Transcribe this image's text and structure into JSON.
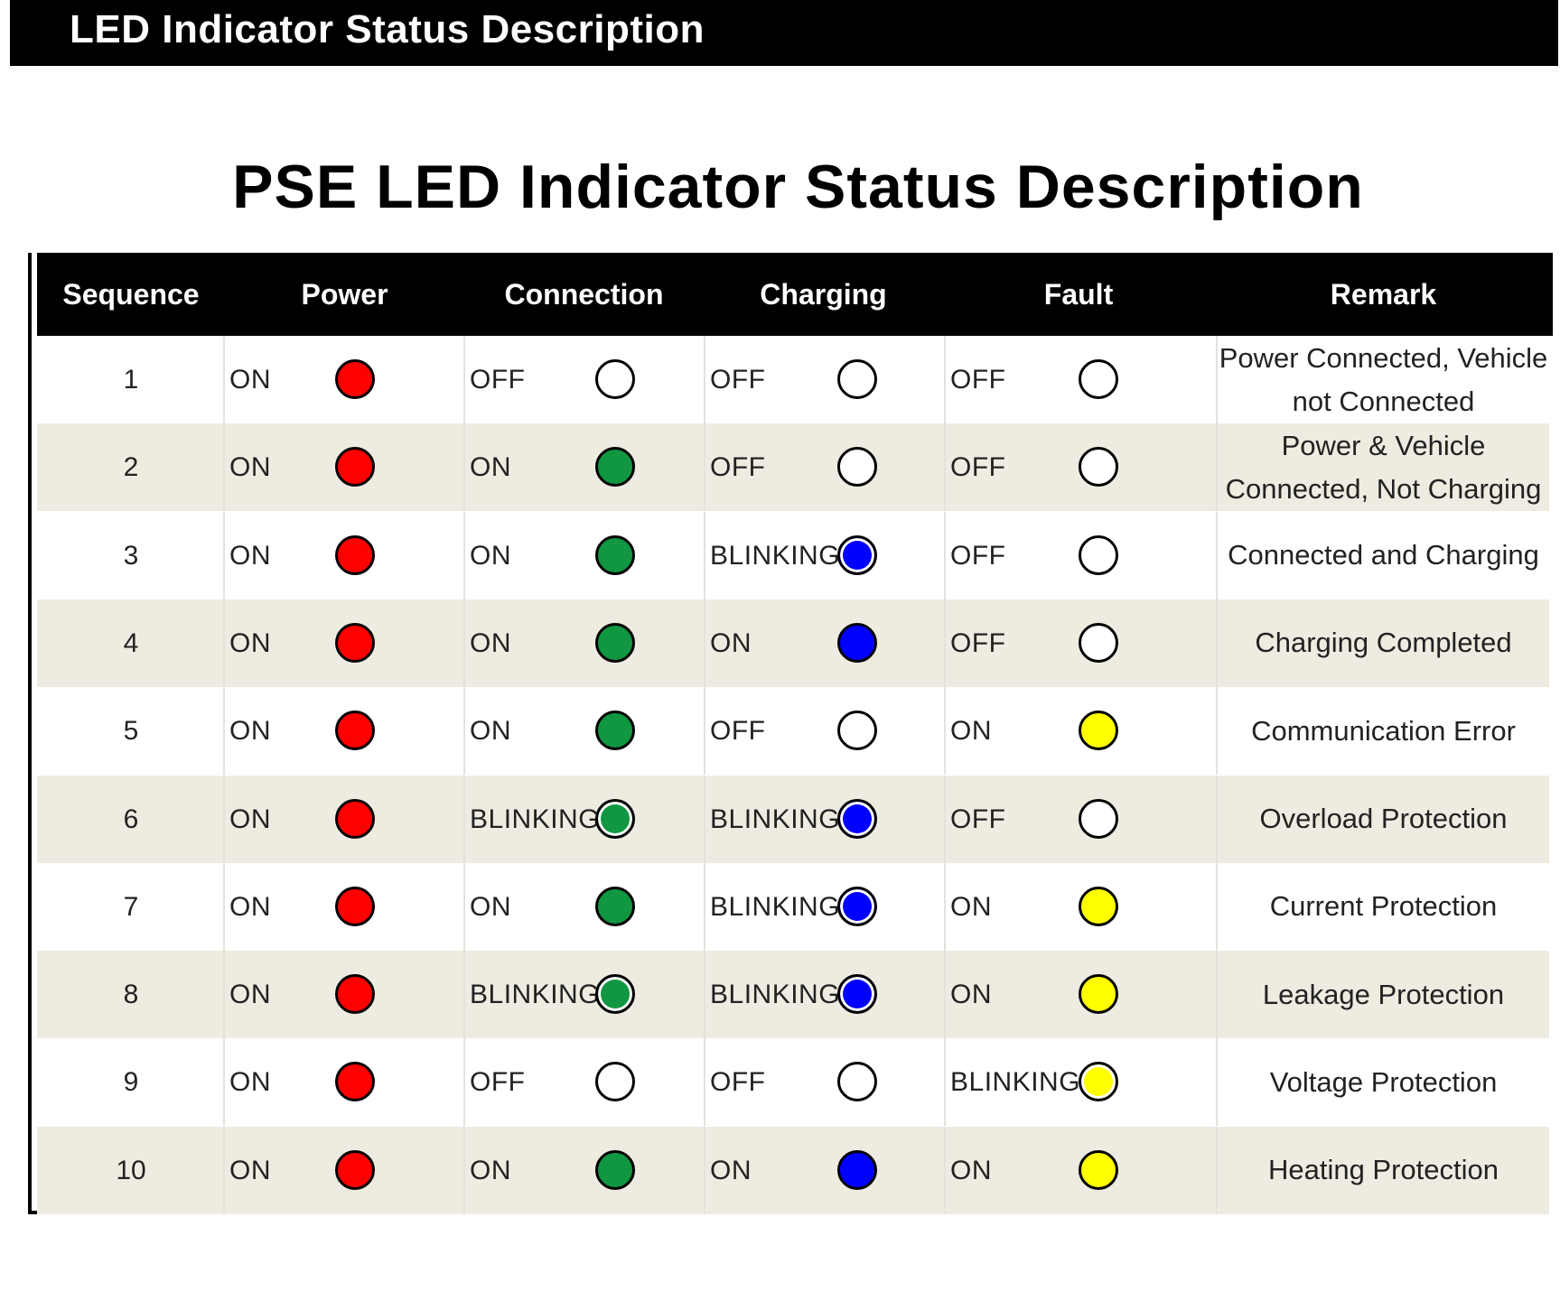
{
  "banner": {
    "title": "LED Indicator Status Description"
  },
  "main_title": "PSE LED Indicator Status Description",
  "colors": {
    "red": "#ff0000",
    "green": "#119641",
    "blue": "#0000ff",
    "yellow": "#ffff00",
    "off": "#ffffff",
    "header_bg": "#000000",
    "row_alt_bg": "#eeebe1"
  },
  "table": {
    "headers": {
      "sequence": "Sequence",
      "power": "Power",
      "connection": "Connection",
      "charging": "Charging",
      "fault": "Fault",
      "remark": "Remark"
    },
    "rows": [
      {
        "seq": "1",
        "power": {
          "state": "ON",
          "color": "red"
        },
        "connection": {
          "state": "OFF",
          "color": "off"
        },
        "charging": {
          "state": "OFF",
          "color": "off"
        },
        "fault": {
          "state": "OFF",
          "color": "off"
        },
        "remark": "Power Connected, Vehicle not Connected"
      },
      {
        "seq": "2",
        "power": {
          "state": "ON",
          "color": "red"
        },
        "connection": {
          "state": "ON",
          "color": "green"
        },
        "charging": {
          "state": "OFF",
          "color": "off"
        },
        "fault": {
          "state": "OFF",
          "color": "off"
        },
        "remark": "Power & Vehicle Connected, Not Charging"
      },
      {
        "seq": "3",
        "power": {
          "state": "ON",
          "color": "red"
        },
        "connection": {
          "state": "ON",
          "color": "green"
        },
        "charging": {
          "state": "BLINKING",
          "color": "blue"
        },
        "fault": {
          "state": "OFF",
          "color": "off"
        },
        "remark": "Connected and Charging"
      },
      {
        "seq": "4",
        "power": {
          "state": "ON",
          "color": "red"
        },
        "connection": {
          "state": "ON",
          "color": "green"
        },
        "charging": {
          "state": "ON",
          "color": "blue"
        },
        "fault": {
          "state": "OFF",
          "color": "off"
        },
        "remark": "Charging Completed"
      },
      {
        "seq": "5",
        "power": {
          "state": "ON",
          "color": "red"
        },
        "connection": {
          "state": "ON",
          "color": "green"
        },
        "charging": {
          "state": "OFF",
          "color": "off"
        },
        "fault": {
          "state": "ON",
          "color": "yellow"
        },
        "remark": "Communication Error"
      },
      {
        "seq": "6",
        "power": {
          "state": "ON",
          "color": "red"
        },
        "connection": {
          "state": "BLINKING",
          "color": "green"
        },
        "charging": {
          "state": "BLINKING",
          "color": "blue"
        },
        "fault": {
          "state": "OFF",
          "color": "off"
        },
        "remark": "Overload Protection"
      },
      {
        "seq": "7",
        "power": {
          "state": "ON",
          "color": "red"
        },
        "connection": {
          "state": "ON",
          "color": "green"
        },
        "charging": {
          "state": "BLINKING",
          "color": "blue"
        },
        "fault": {
          "state": "ON",
          "color": "yellow"
        },
        "remark": "Current Protection"
      },
      {
        "seq": "8",
        "power": {
          "state": "ON",
          "color": "red"
        },
        "connection": {
          "state": "BLINKING",
          "color": "green"
        },
        "charging": {
          "state": "BLINKING",
          "color": "blue"
        },
        "fault": {
          "state": "ON",
          "color": "yellow"
        },
        "remark": "Leakage Protection"
      },
      {
        "seq": "9",
        "power": {
          "state": "ON",
          "color": "red"
        },
        "connection": {
          "state": "OFF",
          "color": "off"
        },
        "charging": {
          "state": "OFF",
          "color": "off"
        },
        "fault": {
          "state": "BLINKING",
          "color": "yellow"
        },
        "remark": "Voltage Protection"
      },
      {
        "seq": "10",
        "power": {
          "state": "ON",
          "color": "red"
        },
        "connection": {
          "state": "ON",
          "color": "green"
        },
        "charging": {
          "state": "ON",
          "color": "blue"
        },
        "fault": {
          "state": "ON",
          "color": "yellow"
        },
        "remark": "Heating Protection"
      }
    ]
  }
}
